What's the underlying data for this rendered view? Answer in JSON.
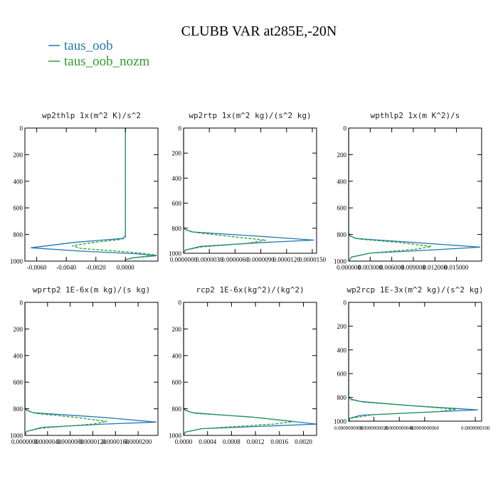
{
  "title": "CLUBB VAR at285E,-20N",
  "legend": {
    "placement": "top-left",
    "entries": [
      {
        "name": "taus_oob",
        "color": "#1f77b4",
        "dash": "solid"
      },
      {
        "name": "taus_oob_nozm",
        "color": "#2ca02c",
        "dash": "dashed"
      }
    ]
  },
  "chart_data": [
    {
      "type": "line",
      "title": "wp2thlp  1x(m^2 K)/s^2",
      "xlim": [
        -0.0068,
        0.0022
      ],
      "ylim": [
        1000,
        0
      ],
      "grid": false,
      "xticks": [
        -0.006,
        -0.004,
        -0.002,
        0.0
      ],
      "xtick_labels": [
        "-0.0060",
        "-0.0040",
        "-0.0020",
        "0.0000"
      ],
      "yticks": [
        0,
        200,
        400,
        600,
        800,
        1000
      ],
      "ytick_labels": [
        "0",
        "200",
        "400",
        "600",
        "800",
        "1000"
      ],
      "series": [
        {
          "name": "taus_oob",
          "x": [
            0.0,
            0.0,
            -3e-05,
            -0.0002,
            -0.0035,
            -0.0064,
            -0.003,
            0.0008,
            0.0021,
            0.0005,
            0.0,
            0.0
          ],
          "y": [
            0,
            800,
            815,
            830,
            860,
            900,
            925,
            945,
            960,
            975,
            990,
            1000
          ]
        },
        {
          "name": "taus_oob_nozm",
          "x": [
            0.0,
            0.0,
            -0.0001,
            -0.0005,
            -0.0022,
            -0.0036,
            -0.003,
            0.0006,
            0.0021,
            0.0005,
            0.0,
            0.0
          ],
          "y": [
            0,
            820,
            830,
            840,
            860,
            885,
            905,
            935,
            955,
            975,
            990,
            1000
          ]
        }
      ]
    },
    {
      "type": "line",
      "title": "wp2rtp  1x(m^2 kg)/(s^2 kg)",
      "xlim": [
        0.0,
        1.55e-05
      ],
      "ylim": [
        1000,
        0
      ],
      "grid": false,
      "xticks": [
        0.0,
        3e-06,
        6e-06,
        9e-06,
        1.2e-05,
        1.5e-05
      ],
      "xtick_labels": [
        "0.0000000",
        "0.0000030",
        "0.0000060",
        "0.0000090",
        "0.0000120",
        "0.0000150"
      ],
      "yticks": [
        0,
        200,
        400,
        600,
        800,
        1000
      ],
      "ytick_labels": [
        "0",
        "200",
        "400",
        "600",
        "800",
        "1000"
      ],
      "series": [
        {
          "name": "taus_oob",
          "x": [
            0.0,
            0.0,
            2e-07,
            1e-06,
            9e-06,
            1.52e-05,
            9e-06,
            2e-06,
            2e-07,
            0.0
          ],
          "y": [
            0,
            790,
            810,
            830,
            865,
            895,
            915,
            945,
            975,
            1000
          ]
        },
        {
          "name": "taus_oob_nozm",
          "x": [
            0.0,
            0.0,
            3e-07,
            1.5e-06,
            6e-06,
            9.6e-06,
            7.5e-06,
            2e-06,
            2e-07,
            0.0
          ],
          "y": [
            0,
            800,
            815,
            835,
            870,
            895,
            920,
            950,
            975,
            1000
          ]
        }
      ]
    },
    {
      "type": "line",
      "title": "wpthlp2  1x(m K^2)/s",
      "xlim": [
        0.0,
        0.0185
      ],
      "ylim": [
        1000,
        0
      ],
      "grid": false,
      "xticks": [
        0.0,
        0.003,
        0.006,
        0.009,
        0.012,
        0.015
      ],
      "xtick_labels": [
        "0.000000",
        "0.003000",
        "0.006000",
        "0.009000",
        "0.012000",
        "0.015000"
      ],
      "yticks": [
        0,
        200,
        400,
        600,
        800,
        1000
      ],
      "ytick_labels": [
        "0",
        "200",
        "400",
        "600",
        "800",
        "1000"
      ],
      "series": [
        {
          "name": "taus_oob",
          "x": [
            0.0,
            0.0,
            0.0002,
            0.001,
            0.009,
            0.0183,
            0.012,
            0.003,
            0.0004,
            0.0
          ],
          "y": [
            0,
            790,
            810,
            830,
            860,
            895,
            915,
            940,
            970,
            1000
          ]
        },
        {
          "name": "taus_oob_nozm",
          "x": [
            0.0,
            0.0,
            0.0003,
            0.0015,
            0.007,
            0.0115,
            0.0095,
            0.003,
            0.0004,
            0.0
          ],
          "y": [
            0,
            800,
            815,
            835,
            860,
            890,
            910,
            940,
            970,
            1000
          ]
        }
      ]
    },
    {
      "type": "line",
      "title": "wprtp2  1E-6x(m kg)/(s kg)",
      "xlim": [
        0.0,
        2.35e-05
      ],
      "ylim": [
        1000,
        0
      ],
      "grid": false,
      "xticks": [
        0.0,
        4e-06,
        8e-06,
        1.2e-05,
        1.6e-05,
        2e-05
      ],
      "xtick_labels": [
        "0.0000000",
        "0.0000040",
        "0.0000080",
        "0.0000120",
        "0.0000160",
        "0.0000200"
      ],
      "yticks": [
        0,
        200,
        400,
        600,
        800,
        1000
      ],
      "ytick_labels": [
        "0",
        "200",
        "400",
        "600",
        "800",
        "1000"
      ],
      "series": [
        {
          "name": "taus_oob",
          "x": [
            0.0,
            0.0,
            3e-07,
            1.5e-06,
            1.4e-05,
            2.32e-05,
            1.4e-05,
            3e-06,
            3e-07,
            0.0
          ],
          "y": [
            0,
            790,
            810,
            830,
            865,
            900,
            915,
            940,
            970,
            1000
          ]
        },
        {
          "name": "taus_oob_nozm",
          "x": [
            0.0,
            0.0,
            4e-07,
            2e-06,
            9e-06,
            1.45e-05,
            1.2e-05,
            3e-06,
            3e-07,
            0.0
          ],
          "y": [
            0,
            800,
            815,
            835,
            865,
            895,
            915,
            945,
            970,
            1000
          ]
        }
      ]
    },
    {
      "type": "line",
      "title": "rcp2  1E-6x(kg^2)/(kg^2)",
      "xlim": [
        0.0,
        0.00222
      ],
      "ylim": [
        1000,
        0
      ],
      "grid": false,
      "xticks": [
        0.0,
        0.0004,
        0.0008,
        0.0012,
        0.0016,
        0.002
      ],
      "xtick_labels": [
        "0.0000",
        "0.0004",
        "0.0008",
        "0.0012",
        "0.0016",
        "0.0020"
      ],
      "yticks": [
        0,
        200,
        400,
        600,
        800,
        1000
      ],
      "ytick_labels": [
        "0",
        "200",
        "400",
        "600",
        "800",
        "1000"
      ],
      "series": [
        {
          "name": "taus_oob",
          "x": [
            0.0,
            0.0,
            3e-05,
            0.00015,
            0.0012,
            0.00222,
            0.0014,
            0.0003,
            3e-05,
            0.0
          ],
          "y": [
            0,
            790,
            810,
            830,
            865,
            915,
            930,
            950,
            975,
            1000
          ]
        },
        {
          "name": "taus_oob_nozm",
          "x": [
            0.0,
            0.0,
            4e-05,
            0.0002,
            0.0011,
            0.00185,
            0.0015,
            0.0003,
            3e-05,
            0.0
          ],
          "y": [
            0,
            800,
            815,
            835,
            860,
            895,
            915,
            950,
            975,
            1000
          ]
        }
      ]
    },
    {
      "type": "line",
      "title": "wp2rcp  1E-3x(m^2 kg)/(s^2 kg)",
      "xlim": [
        0.0,
        1.05e-08
      ],
      "ylim": [
        1000,
        0
      ],
      "grid": false,
      "xticks": [
        0.0,
        2e-09,
        4e-09,
        6e-09,
        1e-08
      ],
      "xtick_labels": [
        "0.0000000000",
        "0.0000000020",
        "0.0000000040",
        "0.0000000060",
        "0.0000000100"
      ],
      "yticks": [
        0,
        200,
        400,
        600,
        800,
        1000
      ],
      "ytick_labels": [
        "0",
        "200",
        "400",
        "600",
        "800",
        "1000"
      ],
      "series": [
        {
          "name": "taus_oob",
          "x": [
            0.0,
            0.0,
            2e-10,
            1e-09,
            5e-09,
            1.02e-08,
            6e-09,
            1e-09,
            1e-10,
            0.0
          ],
          "y": [
            0,
            800,
            815,
            835,
            870,
            905,
            925,
            950,
            975,
            1000
          ]
        },
        {
          "name": "taus_oob_nozm",
          "x": [
            0.0,
            0.0,
            2e-10,
            1.2e-09,
            5e-09,
            8.5e-09,
            7e-09,
            2e-09,
            2e-10,
            0.0
          ],
          "y": [
            0,
            805,
            820,
            840,
            870,
            900,
            920,
            945,
            975,
            1000
          ]
        }
      ]
    }
  ]
}
